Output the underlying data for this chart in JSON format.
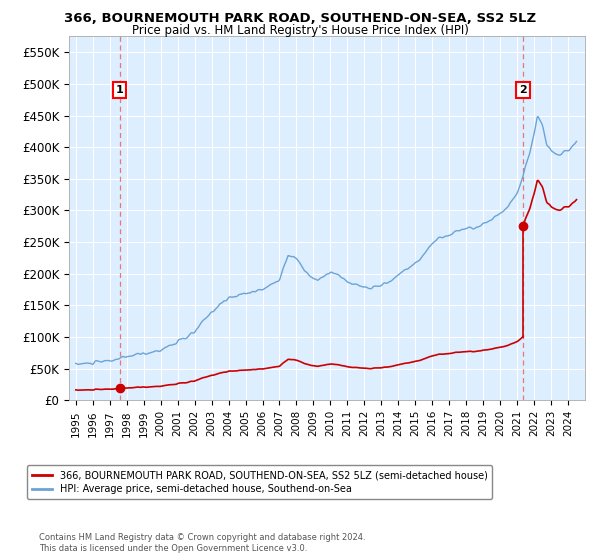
{
  "title_line1": "366, BOURNEMOUTH PARK ROAD, SOUTHEND-ON-SEA, SS2 5LZ",
  "title_line2": "Price paid vs. HM Land Registry's House Price Index (HPI)",
  "ylim": [
    0,
    575000
  ],
  "yticks": [
    0,
    50000,
    100000,
    150000,
    200000,
    250000,
    300000,
    350000,
    400000,
    450000,
    500000,
    550000
  ],
  "ytick_labels": [
    "£0",
    "£50K",
    "£100K",
    "£150K",
    "£200K",
    "£250K",
    "£300K",
    "£350K",
    "£400K",
    "£450K",
    "£500K",
    "£550K"
  ],
  "xlim_start": 1994.6,
  "xlim_end": 2025.0,
  "xticks": [
    1995,
    1996,
    1997,
    1998,
    1999,
    2000,
    2001,
    2002,
    2003,
    2004,
    2005,
    2006,
    2007,
    2008,
    2009,
    2010,
    2011,
    2012,
    2013,
    2014,
    2015,
    2016,
    2017,
    2018,
    2019,
    2020,
    2021,
    2022,
    2023,
    2024
  ],
  "hpi_color": "#6ba3d6",
  "price_color": "#cc0000",
  "vline_color": "#e87878",
  "point1_year": 1997.58,
  "point1_price": 18820,
  "point2_year": 2021.35,
  "point2_price": 275000,
  "label1_text": "1",
  "label2_text": "2",
  "legend_line1": "366, BOURNEMOUTH PARK ROAD, SOUTHEND-ON-SEA, SS2 5LZ (semi-detached house)",
  "legend_line2": "HPI: Average price, semi-detached house, Southend-on-Sea",
  "note_line1": "Contains HM Land Registry data © Crown copyright and database right 2024.",
  "note_line2": "This data is licensed under the Open Government Licence v3.0.",
  "bg_color": "#ffffff",
  "plot_bg_color": "#ddeeff",
  "grid_color": "#ffffff"
}
